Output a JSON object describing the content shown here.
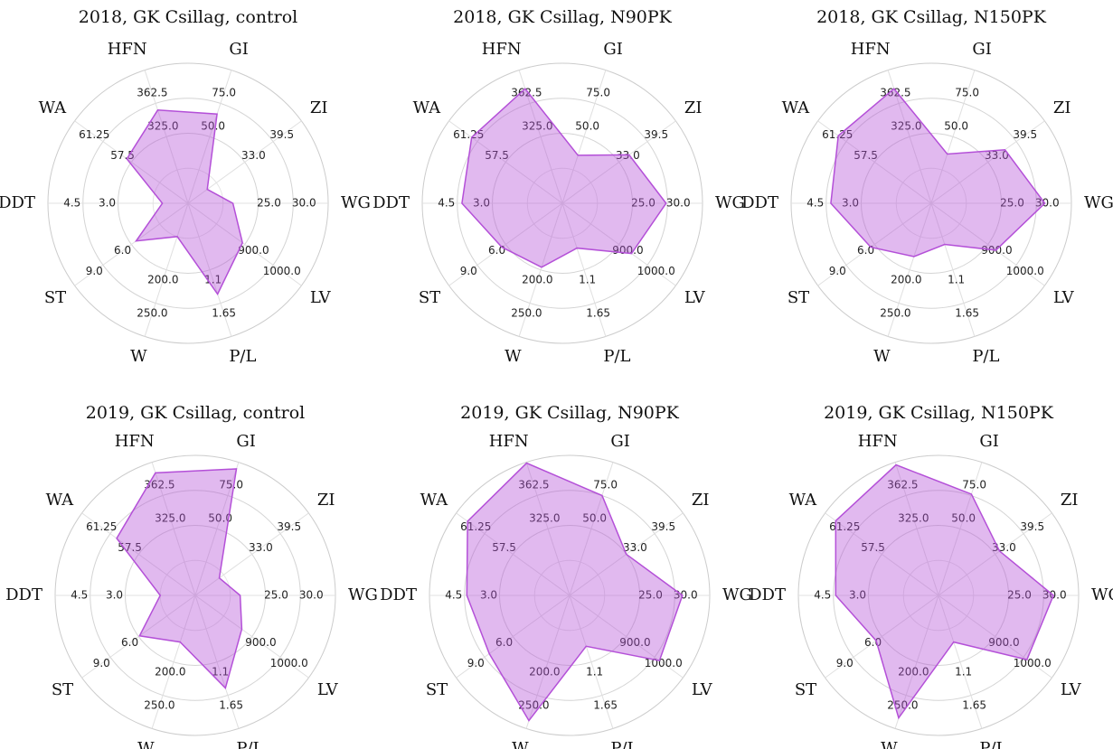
{
  "chart_data": [
    {
      "type": "radar",
      "title": "2018, GK Csillag, control",
      "color": "#b450d8",
      "categories": [
        "WG",
        "ZI",
        "GI",
        "HFN",
        "WA",
        "DDT",
        "ST",
        "W",
        "P/L",
        "LV"
      ],
      "values": [
        21.4,
        24.4,
        67,
        355,
        58.1,
        1.1,
        5.5,
        150,
        1.5,
        892
      ],
      "axis_ranges": [
        [
          15,
          35
        ],
        [
          20,
          46
        ],
        [
          0,
          100
        ],
        [
          250,
          400
        ],
        [
          50,
          65
        ],
        [
          0,
          6
        ],
        [
          0,
          12
        ],
        [
          100,
          300
        ],
        [
          0,
          2.2
        ],
        [
          700,
          1100
        ]
      ],
      "axis_ticks": [
        [
          {
            "value": 25,
            "label": "25.0"
          },
          {
            "value": 30,
            "label": "30.0"
          }
        ],
        [
          {
            "value": 33,
            "label": "33.0"
          },
          39.5
        ],
        [
          {
            "value": 50,
            "label": "50.0"
          },
          {
            "value": 75,
            "label": "75.0"
          }
        ],
        [
          {
            "value": 325,
            "label": "325.0"
          },
          362.5
        ],
        [
          57.5,
          61.25
        ],
        [
          {
            "value": 3,
            "label": "3.0"
          },
          4.5
        ],
        [
          {
            "value": 6,
            "label": "6.0"
          },
          {
            "value": 9,
            "label": "9.0"
          }
        ],
        [
          {
            "value": 200,
            "label": "200.0"
          },
          {
            "value": 250,
            "label": "250.0"
          }
        ],
        [
          1.1,
          1.65
        ],
        [
          {
            "value": 900,
            "label": "900.0"
          },
          {
            "value": 1000,
            "label": "1000.0"
          }
        ]
      ]
    },
    {
      "type": "radar",
      "title": "2018, GK Csillag, N90PK",
      "color": "#b450d8",
      "categories": [
        "WG",
        "ZI",
        "GI",
        "HFN",
        "WA",
        "DDT",
        "ST",
        "W",
        "P/L",
        "LV"
      ],
      "values": [
        29.8,
        35.3,
        36,
        379,
        62,
        4.3,
        6.4,
        196,
        0.74,
        944
      ],
      "axis_ranges": [
        [
          15,
          35
        ],
        [
          20,
          46
        ],
        [
          0,
          100
        ],
        [
          250,
          400
        ],
        [
          50,
          65
        ],
        [
          0,
          6
        ],
        [
          0,
          12
        ],
        [
          100,
          300
        ],
        [
          0,
          2.2
        ],
        [
          700,
          1100
        ]
      ],
      "axis_ticks": [
        [
          {
            "value": 25,
            "label": "25.0"
          },
          {
            "value": 30,
            "label": "30.0"
          }
        ],
        [
          {
            "value": 33,
            "label": "33.0"
          },
          39.5
        ],
        [
          {
            "value": 50,
            "label": "50.0"
          },
          {
            "value": 75,
            "label": "75.0"
          }
        ],
        [
          {
            "value": 325,
            "label": "325.0"
          },
          362.5
        ],
        [
          57.5,
          61.25
        ],
        [
          {
            "value": 3,
            "label": "3.0"
          },
          4.5
        ],
        [
          {
            "value": 6,
            "label": "6.0"
          },
          {
            "value": 9,
            "label": "9.0"
          }
        ],
        [
          {
            "value": 200,
            "label": "200.0"
          },
          {
            "value": 250,
            "label": "250.0"
          }
        ],
        [
          1.1,
          1.65
        ],
        [
          {
            "value": 900,
            "label": "900.0"
          },
          {
            "value": 1000,
            "label": "1000.0"
          }
        ]
      ]
    },
    {
      "type": "radar",
      "title": "2018, GK Csillag, N150PK",
      "color": "#b450d8",
      "categories": [
        "WG",
        "ZI",
        "GI",
        "HFN",
        "WA",
        "DDT",
        "ST",
        "W",
        "P/L",
        "LV"
      ],
      "values": [
        31.2,
        36.9,
        37,
        379,
        62.3,
        4.3,
        6.4,
        180,
        0.68,
        928
      ],
      "axis_ranges": [
        [
          15,
          35
        ],
        [
          20,
          46
        ],
        [
          0,
          100
        ],
        [
          250,
          400
        ],
        [
          50,
          65
        ],
        [
          0,
          6
        ],
        [
          0,
          12
        ],
        [
          100,
          300
        ],
        [
          0,
          2.2
        ],
        [
          700,
          1100
        ]
      ],
      "axis_ticks": [
        [
          {
            "value": 25,
            "label": "25.0"
          },
          {
            "value": 30,
            "label": "30.0"
          }
        ],
        [
          {
            "value": 33,
            "label": "33.0"
          },
          39.5
        ],
        [
          {
            "value": 50,
            "label": "50.0"
          },
          {
            "value": 75,
            "label": "75.0"
          }
        ],
        [
          {
            "value": 325,
            "label": "325.0"
          },
          362.5
        ],
        [
          57.5,
          61.25
        ],
        [
          {
            "value": 3,
            "label": "3.0"
          },
          4.5
        ],
        [
          {
            "value": 6,
            "label": "6.0"
          },
          {
            "value": 9,
            "label": "9.0"
          }
        ],
        [
          {
            "value": 200,
            "label": "200.0"
          },
          {
            "value": 250,
            "label": "250.0"
          }
        ],
        [
          1.1,
          1.65
        ],
        [
          {
            "value": 900,
            "label": "900.0"
          },
          {
            "value": 1000,
            "label": "1000.0"
          }
        ]
      ]
    },
    {
      "type": "radar",
      "title": "2019, GK Csillag, control",
      "color": "#b450d8",
      "categories": [
        "WG",
        "ZI",
        "GI",
        "HFN",
        "WA",
        "DDT",
        "ST",
        "W",
        "P/L",
        "LV"
      ],
      "values": [
        21.4,
        25.5,
        95,
        388,
        60.4,
        1.5,
        5.9,
        170,
        1.53,
        864
      ],
      "axis_ranges": [
        [
          15,
          35
        ],
        [
          20,
          46
        ],
        [
          0,
          100
        ],
        [
          250,
          400
        ],
        [
          50,
          65
        ],
        [
          0,
          6
        ],
        [
          0,
          12
        ],
        [
          100,
          300
        ],
        [
          0,
          2.2
        ],
        [
          700,
          1100
        ]
      ],
      "axis_ticks": [
        [
          {
            "value": 25,
            "label": "25.0"
          },
          {
            "value": 30,
            "label": "30.0"
          }
        ],
        [
          {
            "value": 33,
            "label": "33.0"
          },
          39.5
        ],
        [
          {
            "value": 50,
            "label": "50.0"
          },
          {
            "value": 75,
            "label": "75.0"
          }
        ],
        [
          {
            "value": 325,
            "label": "325.0"
          },
          362.5
        ],
        [
          57.5,
          61.25
        ],
        [
          {
            "value": 3,
            "label": "3.0"
          },
          4.5
        ],
        [
          {
            "value": 6,
            "label": "6.0"
          },
          {
            "value": 9,
            "label": "9.0"
          }
        ],
        [
          {
            "value": 200,
            "label": "200.0"
          },
          {
            "value": 250,
            "label": "250.0"
          }
        ],
        [
          1.1,
          1.65
        ],
        [
          {
            "value": 900,
            "label": "900.0"
          },
          {
            "value": 1000,
            "label": "1000.0"
          }
        ]
      ]
    },
    {
      "type": "radar",
      "title": "2019, GK Csillag, N90PK",
      "color": "#b450d8",
      "categories": [
        "WG",
        "ZI",
        "GI",
        "HFN",
        "WA",
        "DDT",
        "ST",
        "W",
        "P/L",
        "LV"
      ],
      "values": [
        31.1,
        33,
        75,
        399,
        63.5,
        4.4,
        8.5,
        288,
        0.84,
        1017
      ],
      "axis_ranges": [
        [
          15,
          35
        ],
        [
          20,
          46
        ],
        [
          0,
          100
        ],
        [
          250,
          400
        ],
        [
          50,
          65
        ],
        [
          0,
          6
        ],
        [
          0,
          12
        ],
        [
          100,
          300
        ],
        [
          0,
          2.2
        ],
        [
          700,
          1100
        ]
      ],
      "axis_ticks": [
        [
          {
            "value": 25,
            "label": "25.0"
          },
          {
            "value": 30,
            "label": "30.0"
          }
        ],
        [
          {
            "value": 33,
            "label": "33.0"
          },
          39.5
        ],
        [
          {
            "value": 50,
            "label": "50.0"
          },
          {
            "value": 75,
            "label": "75.0"
          }
        ],
        [
          {
            "value": 325,
            "label": "325.0"
          },
          362.5
        ],
        [
          57.5,
          61.25
        ],
        [
          {
            "value": 3,
            "label": "3.0"
          },
          4.5
        ],
        [
          {
            "value": 6,
            "label": "6.0"
          },
          {
            "value": 9,
            "label": "9.0"
          }
        ],
        [
          {
            "value": 200,
            "label": "200.0"
          },
          {
            "value": 250,
            "label": "250.0"
          }
        ],
        [
          1.1,
          1.65
        ],
        [
          {
            "value": 900,
            "label": "900.0"
          },
          {
            "value": 1000,
            "label": "1000.0"
          }
        ]
      ]
    },
    {
      "type": "radar",
      "title": "2019, GK Csillag, N150PK",
      "color": "#b450d8",
      "categories": [
        "WG",
        "ZI",
        "GI",
        "HFN",
        "WA",
        "DDT",
        "ST",
        "W",
        "P/L",
        "LV"
      ],
      "values": [
        31.4,
        34,
        76,
        397,
        63.6,
        4.4,
        6.6,
        284,
        0.77,
        1012
      ],
      "axis_ranges": [
        [
          15,
          35
        ],
        [
          20,
          46
        ],
        [
          0,
          100
        ],
        [
          250,
          400
        ],
        [
          50,
          65
        ],
        [
          0,
          6
        ],
        [
          0,
          12
        ],
        [
          100,
          300
        ],
        [
          0,
          2.2
        ],
        [
          700,
          1100
        ]
      ],
      "axis_ticks": [
        [
          {
            "value": 25,
            "label": "25.0"
          },
          {
            "value": 30,
            "label": "30.0"
          }
        ],
        [
          {
            "value": 33,
            "label": "33.0"
          },
          39.5
        ],
        [
          {
            "value": 50,
            "label": "50.0"
          },
          {
            "value": 75,
            "label": "75.0"
          }
        ],
        [
          {
            "value": 325,
            "label": "325.0"
          },
          362.5
        ],
        [
          57.5,
          61.25
        ],
        [
          {
            "value": 3,
            "label": "3.0"
          },
          4.5
        ],
        [
          {
            "value": 6,
            "label": "6.0"
          },
          {
            "value": 9,
            "label": "9.0"
          }
        ],
        [
          {
            "value": 200,
            "label": "200.0"
          },
          {
            "value": 250,
            "label": "250.0"
          }
        ],
        [
          1.1,
          1.65
        ],
        [
          {
            "value": 900,
            "label": "900.0"
          },
          {
            "value": 1000,
            "label": "1000.0"
          }
        ]
      ]
    }
  ]
}
